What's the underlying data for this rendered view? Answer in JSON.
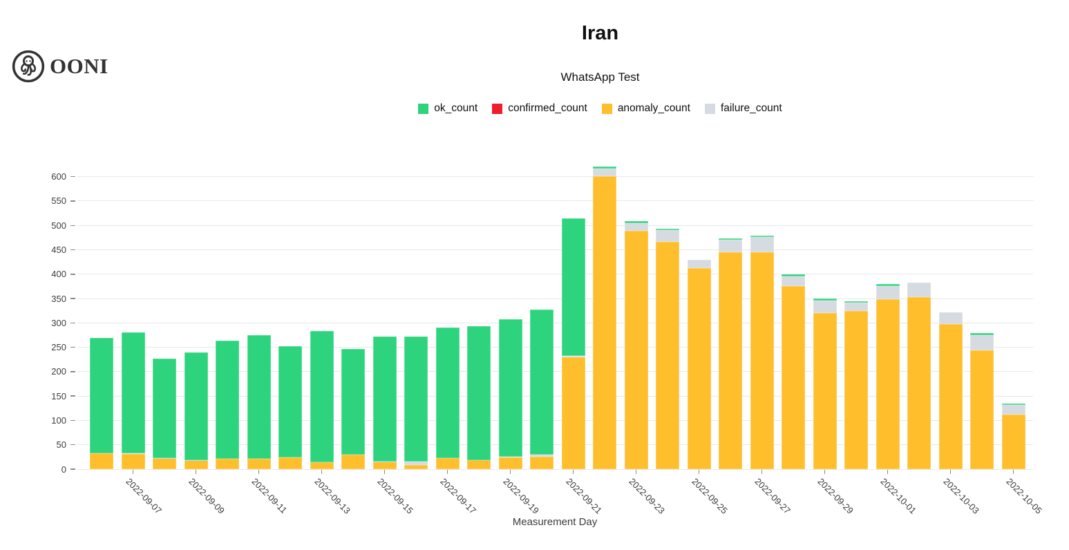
{
  "header": {
    "logo_text": "OONI",
    "title": "Iran",
    "subtitle": "WhatsApp Test"
  },
  "legend": [
    {
      "label": "ok_count",
      "color": "#2ed47d"
    },
    {
      "label": "confirmed_count",
      "color": "#ee1e2d"
    },
    {
      "label": "anomaly_count",
      "color": "#ffbe2c"
    },
    {
      "label": "failure_count",
      "color": "#d5dbe0"
    }
  ],
  "chart_data": {
    "type": "bar",
    "stacked": true,
    "title": "Iran",
    "subtitle": "WhatsApp Test",
    "xlabel": "Measurement Day",
    "ylabel": "",
    "ylim": [
      0,
      620
    ],
    "yticks": [
      0,
      50,
      100,
      150,
      200,
      250,
      300,
      350,
      400,
      450,
      500,
      550,
      600
    ],
    "grid": true,
    "legend_position": "top-center",
    "categories": [
      "2022-09-06",
      "2022-09-07",
      "2022-09-08",
      "2022-09-09",
      "2022-09-10",
      "2022-09-11",
      "2022-09-12",
      "2022-09-13",
      "2022-09-14",
      "2022-09-15",
      "2022-09-16",
      "2022-09-17",
      "2022-09-18",
      "2022-09-19",
      "2022-09-20",
      "2022-09-21",
      "2022-09-22",
      "2022-09-23",
      "2022-09-24",
      "2022-09-25",
      "2022-09-26",
      "2022-09-27",
      "2022-09-28",
      "2022-09-29",
      "2022-09-30",
      "2022-10-01",
      "2022-10-02",
      "2022-10-03",
      "2022-10-04",
      "2022-10-05"
    ],
    "x_tick_labels": [
      "2022-09-07",
      "2022-09-09",
      "2022-09-11",
      "2022-09-13",
      "2022-09-15",
      "2022-09-17",
      "2022-09-19",
      "2022-09-21",
      "2022-09-23",
      "2022-09-25",
      "2022-09-27",
      "2022-09-29",
      "2022-10-01",
      "2022-10-03",
      "2022-10-05"
    ],
    "stack_order_bottom_to_top": [
      "anomaly_count",
      "confirmed_count",
      "failure_count",
      "ok_count"
    ],
    "series": [
      {
        "name": "ok_count",
        "color": "#2ed47d",
        "values": [
          236,
          247,
          204,
          220,
          243,
          254,
          229,
          269,
          216,
          256,
          257,
          269,
          274,
          283,
          298,
          283,
          4,
          4,
          3,
          0,
          3,
          3,
          4,
          4,
          4,
          5,
          0,
          0,
          4,
          3
        ]
      },
      {
        "name": "confirmed_count",
        "color": "#ee1e2d",
        "values": [
          0,
          0,
          0,
          0,
          0,
          0,
          0,
          0,
          0,
          0,
          0,
          0,
          0,
          0,
          0,
          0,
          0,
          0,
          0,
          0,
          0,
          0,
          0,
          0,
          0,
          0,
          0,
          0,
          0,
          0
        ]
      },
      {
        "name": "anomaly_count",
        "color": "#ffbe2c",
        "values": [
          33,
          31,
          22,
          18,
          21,
          21,
          24,
          14,
          30,
          15,
          8,
          22,
          19,
          24,
          26,
          230,
          601,
          489,
          466,
          413,
          445,
          445,
          376,
          320,
          324,
          348,
          353,
          297,
          244,
          112
        ]
      },
      {
        "name": "failure_count",
        "color": "#d5dbe0",
        "values": [
          0,
          2,
          1,
          1,
          0,
          0,
          0,
          0,
          0,
          1,
          7,
          0,
          0,
          1,
          4,
          2,
          16,
          16,
          24,
          17,
          25,
          31,
          20,
          26,
          17,
          27,
          30,
          25,
          31,
          20
        ]
      }
    ]
  }
}
